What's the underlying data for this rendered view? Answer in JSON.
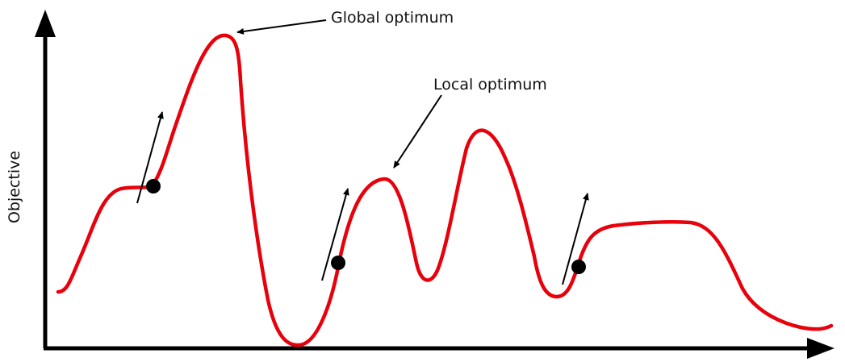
{
  "diagram": {
    "ylabel": "Objective",
    "annotations": {
      "global": "Global optimum",
      "local": "Local optimum"
    },
    "colors": {
      "curve": "#e8000b",
      "axis": "#000000",
      "point": "#000000",
      "arrow": "#000000"
    },
    "search_points": [
      {
        "name": "search-point-1"
      },
      {
        "name": "search-point-2"
      },
      {
        "name": "search-point-3"
      }
    ]
  }
}
